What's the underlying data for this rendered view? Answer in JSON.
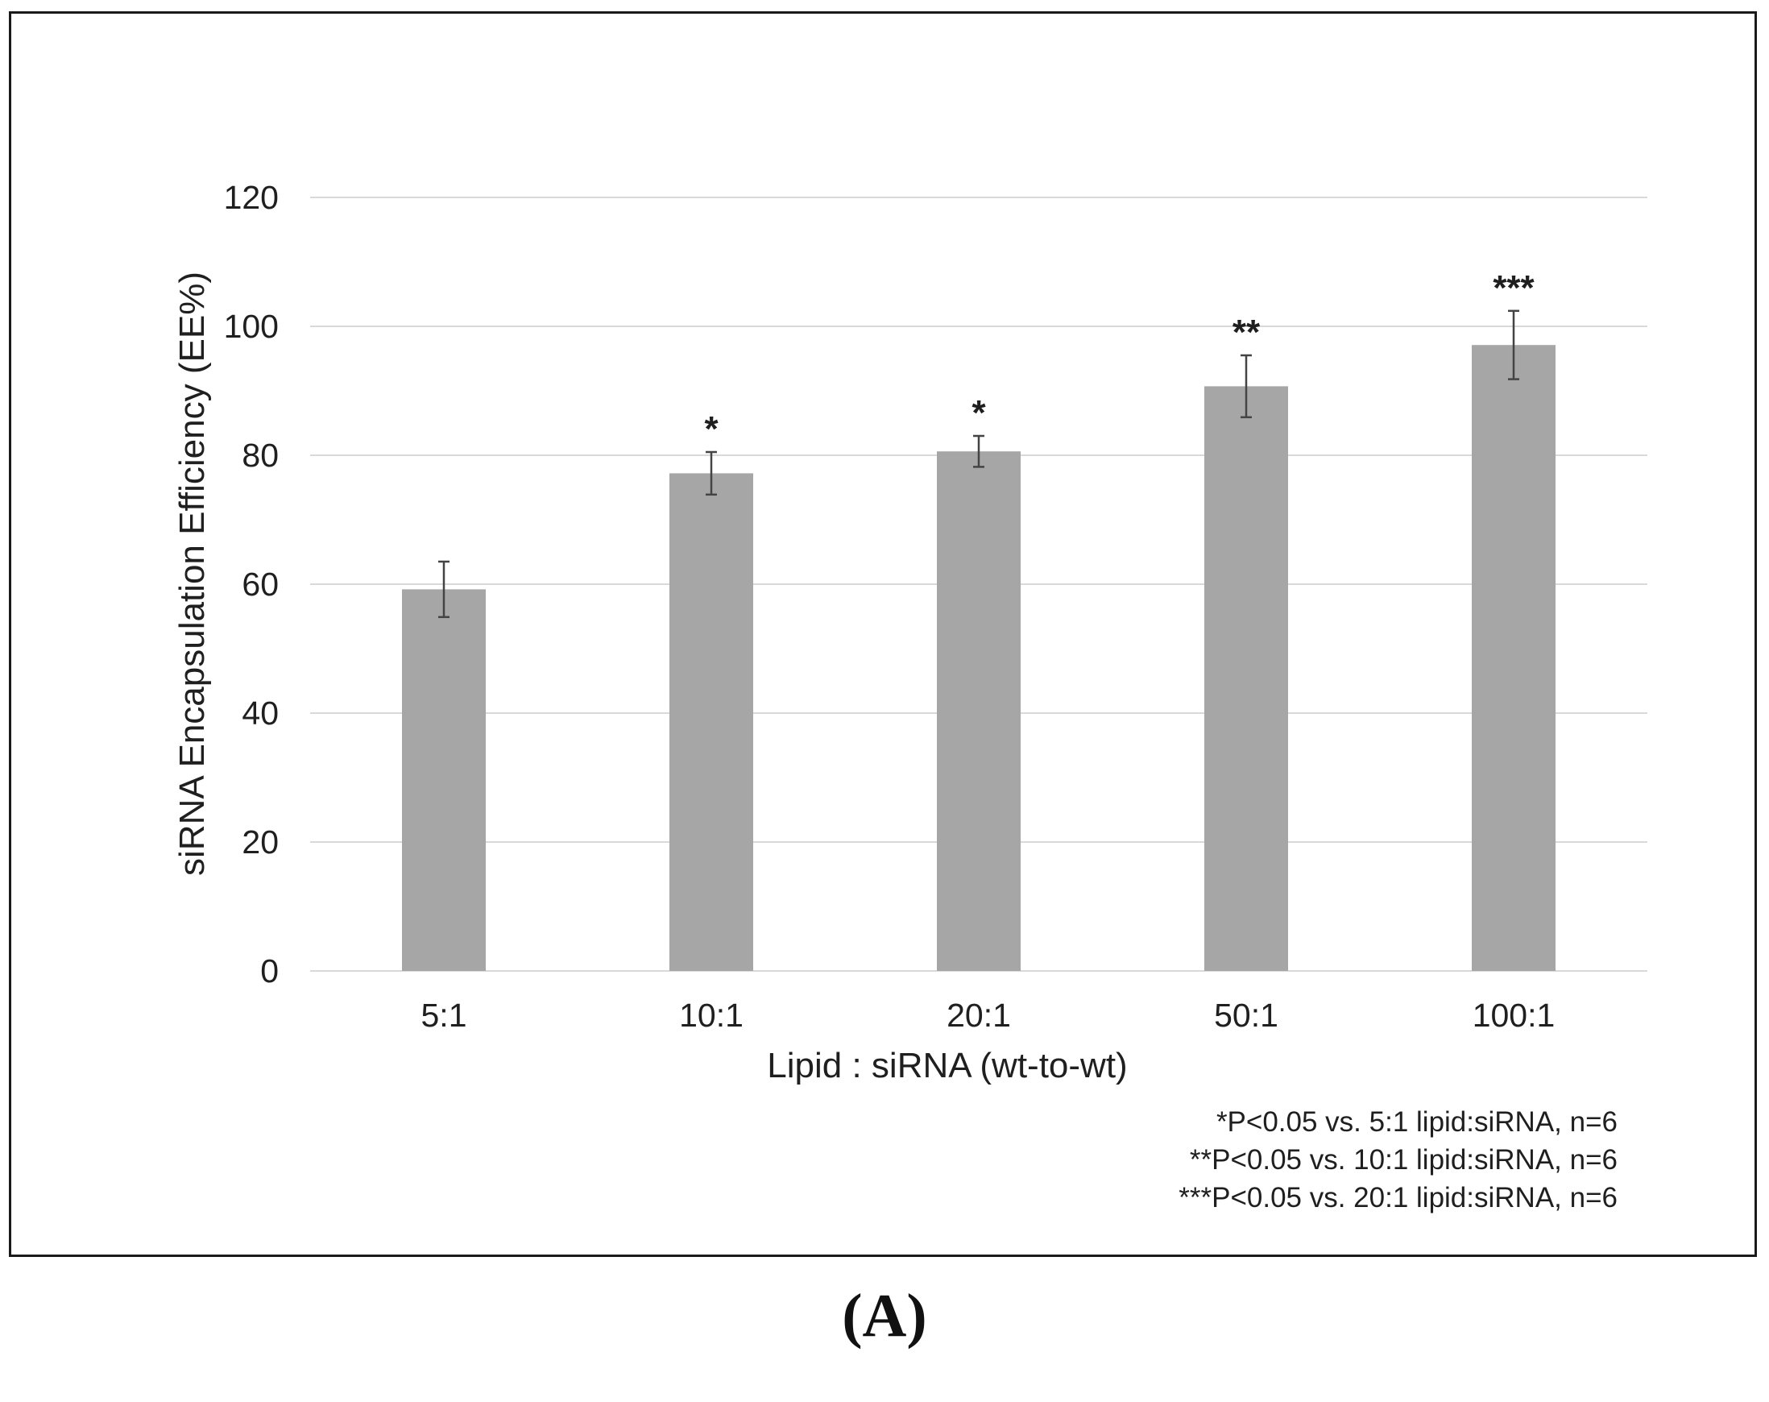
{
  "chart_data": {
    "type": "bar",
    "categories": [
      "5:1",
      "10:1",
      "20:1",
      "50:1",
      "100:1"
    ],
    "values": [
      59.2,
      77.2,
      80.6,
      90.7,
      97.1
    ],
    "errors": [
      4.3,
      3.3,
      2.4,
      4.8,
      5.3
    ],
    "significance": [
      "",
      "*",
      "*",
      "**",
      "***"
    ],
    "xlabel": "Lipid : siRNA (wt-to-wt)",
    "ylabel": "siRNA Encapsulation Efficiency (EE%)",
    "ylim": [
      0,
      120
    ],
    "yticks": [
      0,
      20,
      40,
      60,
      80,
      100,
      120
    ],
    "grid": true,
    "bar_color": "#a6a6a6",
    "gridline_color": "#d9d9d9",
    "notes": [
      "*P<0.05 vs. 5:1 lipid:siRNA, n=6",
      "**P<0.05 vs. 10:1 lipid:siRNA, n=6",
      "***P<0.05 vs. 20:1 lipid:siRNA, n=6"
    ]
  },
  "panel_label": "(A)"
}
